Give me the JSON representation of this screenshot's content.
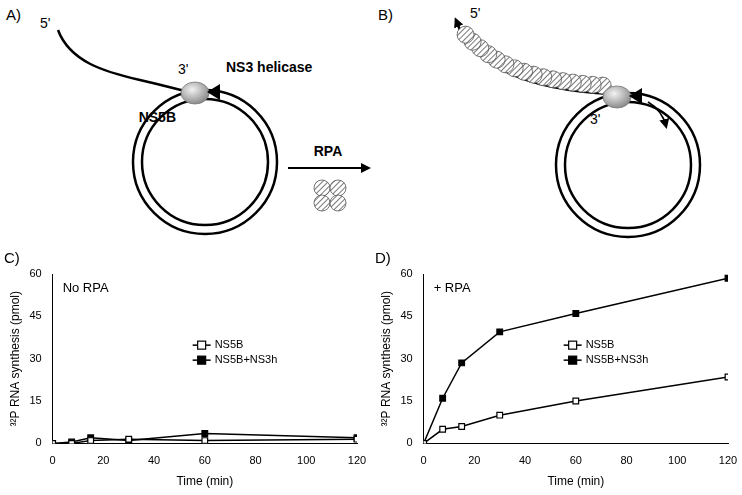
{
  "diagrams": [
    {
      "label": "A)",
      "strand_5": "5'",
      "strand_3": "3'",
      "polymerase": "NS5B",
      "helicase": "NS3 helicase"
    },
    {
      "label": "B)",
      "strand_5": "5'",
      "strand_3": "3'",
      "protein": "RPA"
    }
  ],
  "chart_data": [
    {
      "type": "line",
      "title": "C)",
      "annotation": "No RPA",
      "x_label": "Time (min)",
      "y_label": "³²P RNA synthesis (pmol)",
      "x": [
        0,
        7.5,
        15,
        30,
        60,
        120
      ],
      "series": [
        {
          "name": "NS5B",
          "color": "#000000",
          "marker": "square-open",
          "values": [
            0,
            0,
            1,
            1.5,
            1,
            1.5
          ]
        },
        {
          "name": "NS5B+NS3h",
          "color": "#000000",
          "marker": "square",
          "values": [
            0,
            0.5,
            2,
            1,
            3.5,
            2
          ]
        }
      ],
      "xlim": [
        0,
        120
      ],
      "xticks": [
        0,
        20,
        40,
        60,
        80,
        100,
        120
      ],
      "ylim": [
        0,
        60
      ],
      "yticks": [
        0,
        15,
        30,
        45,
        60
      ],
      "grid": false,
      "legend": "right"
    },
    {
      "type": "line",
      "title": "D)",
      "annotation": "+ RPA",
      "x_label": "Time (min)",
      "y_label": "³²P RNA synthesis (pmol)",
      "x": [
        0,
        7.5,
        15,
        30,
        60,
        120
      ],
      "series": [
        {
          "name": "NS5B",
          "color": "#000000",
          "marker": "square-open",
          "values": [
            0,
            5,
            6,
            10,
            15,
            23.5
          ]
        },
        {
          "name": "NS5B+NS3h",
          "color": "#000000",
          "marker": "square",
          "values": [
            0,
            16,
            28.5,
            39.5,
            46,
            58.5
          ]
        }
      ],
      "xlim": [
        0,
        120
      ],
      "xticks": [
        0,
        20,
        40,
        60,
        80,
        100,
        120
      ],
      "ylim": [
        0,
        60
      ],
      "yticks": [
        0,
        15,
        30,
        45,
        60
      ],
      "grid": false,
      "legend": "right"
    }
  ]
}
